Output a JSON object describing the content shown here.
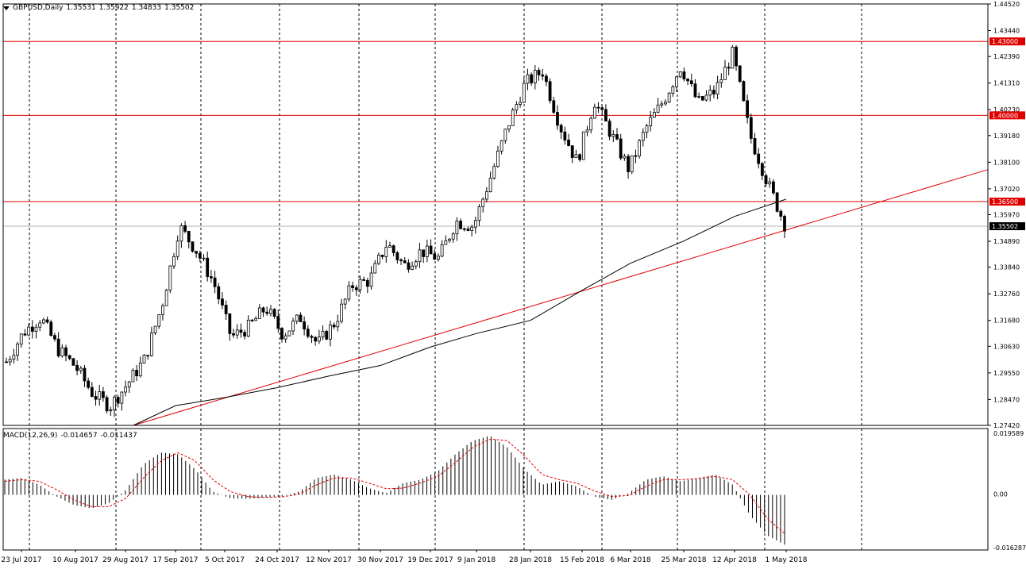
{
  "header": {
    "symbol": "GBPUSD,Daily",
    "open": "1.35531",
    "high": "1.35922",
    "low": "1.34833",
    "close": "1.35502"
  },
  "macd_header": {
    "name": "MACD(12,26,9)",
    "main": "-0.014657",
    "signal": "-0.011437"
  },
  "colors": {
    "up_candle": "#ffffff",
    "down_candle": "#000000",
    "level_line": "#e00000",
    "trend_line": "#e00000",
    "ma_line": "#000000",
    "signal_line": "#e00000",
    "grid": "#000000"
  },
  "chart_data": [
    {
      "type": "candlestick",
      "symbol": "GBPUSD",
      "timeframe": "Daily",
      "ylim": [
        1.2742,
        1.4452
      ],
      "y_ticks": [
        "1.44520",
        "1.43440",
        "1.42390",
        "1.41310",
        "1.40230",
        "1.39180",
        "1.38100",
        "1.37020",
        "1.35970",
        "1.34890",
        "1.33840",
        "1.32760",
        "1.31680",
        "1.30630",
        "1.29550",
        "1.28470",
        "1.27420"
      ],
      "x_ticks": [
        "23 Jul 2017",
        "10 Aug 2017",
        "29 Aug 2017",
        "17 Sep 2017",
        "5 Oct 2017",
        "24 Oct 2017",
        "12 Nov 2017",
        "30 Nov 2017",
        "19 Dec 2017",
        "9 Jan 2018",
        "28 Jan 2018",
        "15 Feb 2018",
        "6 Mar 2018",
        "25 Mar 2018",
        "12 Apr 2018",
        "1 May 2018"
      ],
      "grid": "vertical dashed",
      "levels": [
        {
          "value": 1.43,
          "label": "1.43000"
        },
        {
          "value": 1.4,
          "label": "1.40000"
        },
        {
          "value": 1.365,
          "label": "1.36500"
        }
      ],
      "current_price": {
        "value": 1.35502,
        "label": "1.35502"
      },
      "closes_weekly": [
        1.3,
        1.312,
        1.318,
        1.305,
        1.298,
        1.287,
        1.282,
        1.291,
        1.301,
        1.323,
        1.355,
        1.345,
        1.332,
        1.31,
        1.314,
        1.322,
        1.311,
        1.318,
        1.307,
        1.316,
        1.331,
        1.333,
        1.348,
        1.339,
        1.345,
        1.342,
        1.357,
        1.355,
        1.375,
        1.396,
        1.413,
        1.418,
        1.396,
        1.381,
        1.406,
        1.392,
        1.378,
        1.395,
        1.406,
        1.42,
        1.405,
        1.41,
        1.425,
        1.392,
        1.373,
        1.356
      ],
      "moving_average_200_at_ticks": [
        null,
        null,
        1.2742,
        1.2822,
        1.2855,
        1.2895,
        1.2942,
        1.2985,
        1.306,
        1.3115,
        1.3168,
        1.329,
        1.34,
        1.349,
        1.359,
        1.366
      ],
      "trend_line": {
        "from": [
          "29 Aug 2017",
          1.2742
        ],
        "to": [
          "1 May 2018",
          1.35
        ],
        "extended_to_edge": 1.378
      }
    },
    {
      "type": "macd",
      "params": "12,26,9",
      "ylim": [
        -0.016287,
        0.019589
      ],
      "y_ticks": [
        "0.019589",
        "0.00",
        "-0.016287"
      ],
      "histogram_weekly": [
        0.0045,
        0.005,
        0.003,
        -0.0005,
        -0.003,
        -0.004,
        -0.0025,
        0.0015,
        0.009,
        0.0125,
        0.012,
        0.0075,
        0.001,
        -0.001,
        -0.0012,
        -0.0008,
        -0.0005,
        0.001,
        0.005,
        0.006,
        0.0045,
        0.002,
        0.0005,
        0.0035,
        0.0045,
        0.007,
        0.012,
        0.016,
        0.0175,
        0.014,
        0.0075,
        0.003,
        0.004,
        0.0025,
        -0.0005,
        -0.0015,
        0.0005,
        0.0045,
        0.0055,
        0.004,
        0.005,
        0.006,
        0.003,
        -0.006,
        -0.012,
        -0.0147
      ],
      "signal_weekly": [
        0.004,
        0.0045,
        0.004,
        0.0015,
        -0.0015,
        -0.0035,
        -0.0035,
        -0.001,
        0.005,
        0.01,
        0.0125,
        0.01,
        0.0045,
        0.001,
        -0.0005,
        -0.0008,
        -0.0006,
        0.0002,
        0.003,
        0.005,
        0.005,
        0.0035,
        0.0018,
        0.002,
        0.0035,
        0.0055,
        0.0095,
        0.014,
        0.0165,
        0.016,
        0.0115,
        0.006,
        0.0045,
        0.0035,
        0.0012,
        -0.0005,
        -0.0002,
        0.0025,
        0.0045,
        0.0045,
        0.0048,
        0.0055,
        0.0045,
        0.0,
        -0.007,
        -0.0114
      ]
    }
  ]
}
